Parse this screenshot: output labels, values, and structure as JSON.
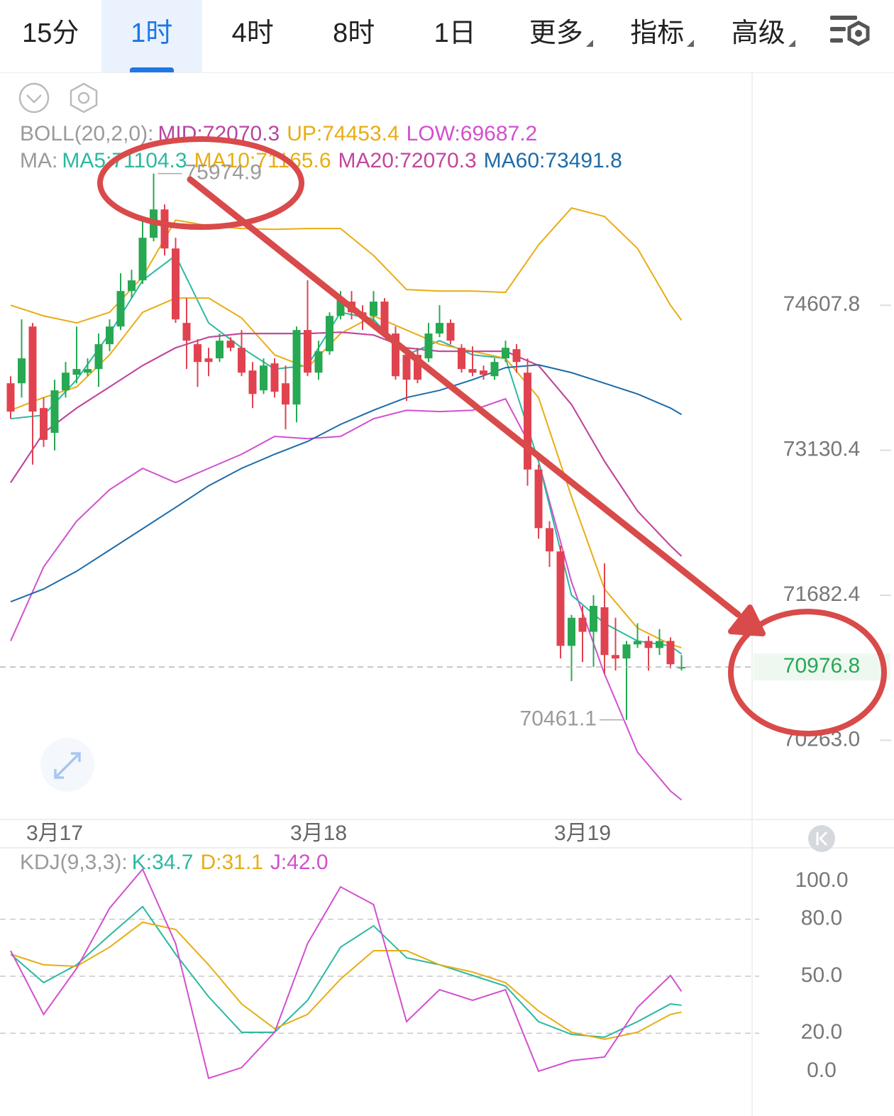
{
  "tabs": [
    {
      "label": "15分"
    },
    {
      "label": "1时",
      "selected": true
    },
    {
      "label": "4时"
    },
    {
      "label": "8时"
    },
    {
      "label": "1日"
    },
    {
      "label": "更多",
      "dropdown": true
    },
    {
      "label": "指标",
      "dropdown": true
    },
    {
      "label": "高级",
      "dropdown": true
    }
  ],
  "chart_data": [
    {
      "type": "candlestick",
      "log_scale": true,
      "up_color": "#27a852",
      "down_color": "#e0434f",
      "categories": [
        null,
        null,
        null,
        null,
        "3月17",
        null,
        null,
        null,
        null,
        null,
        null,
        null,
        null,
        null,
        null,
        null,
        null,
        null,
        null,
        null,
        null,
        null,
        null,
        null,
        null,
        null,
        null,
        null,
        "3月18",
        null,
        null,
        null,
        null,
        null,
        null,
        null,
        null,
        null,
        null,
        null,
        null,
        null,
        null,
        null,
        null,
        null,
        null,
        null,
        null,
        null,
        null,
        null,
        "3月19",
        null,
        null,
        null,
        null,
        null,
        null,
        null,
        null,
        null
      ],
      "open": [
        73809,
        73809,
        74389,
        73557,
        73306,
        73737,
        73896,
        73917,
        73954,
        74208,
        74389,
        74754,
        74864,
        75305,
        75600,
        75194,
        74426,
        74208,
        74063,
        74063,
        74244,
        74171,
        73939,
        73737,
        74012,
        73809,
        73593,
        74353,
        73917,
        74135,
        74498,
        74645,
        74535,
        74498,
        74645,
        74317,
        74099,
        74099,
        74063,
        74317,
        74426,
        74171,
        73954,
        73939,
        73881,
        74063,
        74157,
        73917,
        72936,
        72349,
        72117,
        71184,
        71460,
        71322,
        71564,
        71094,
        71060,
        71198,
        71232,
        71163,
        71232,
        70963
      ],
      "high": [
        73881,
        74462,
        74426,
        73664,
        73845,
        74026,
        74389,
        74063,
        74317,
        74462,
        74937,
        74974,
        75489,
        75974.9,
        75652,
        75305,
        74681,
        74259,
        74171,
        74317,
        74280,
        74353,
        74026,
        74063,
        74063,
        73990,
        74389,
        74864,
        74244,
        74535,
        74754,
        74754,
        74608,
        74754,
        74681,
        74389,
        74171,
        74171,
        74426,
        74608,
        74462,
        74208,
        74186,
        73990,
        74063,
        74244,
        74208,
        74063,
        72986,
        72419,
        72173,
        71488,
        71578,
        71683,
        71998,
        71460,
        71232,
        71405,
        71280,
        71349,
        71267,
        71094
      ],
      "low": [
        73449,
        73664,
        72986,
        73163,
        73128,
        73664,
        73809,
        73881,
        73772,
        74135,
        74353,
        74681,
        74827,
        75269,
        75121,
        74426,
        73954,
        73772,
        73881,
        74026,
        74135,
        73881,
        73557,
        73700,
        73664,
        73342,
        73413,
        73881,
        73845,
        74099,
        74462,
        74462,
        74353,
        74389,
        74280,
        73845,
        73629,
        73809,
        74026,
        74280,
        74208,
        73917,
        73881,
        73845,
        73845,
        74026,
        73917,
        72773,
        72243,
        71963,
        71060,
        70839,
        71025,
        70977,
        70908,
        70942,
        70461.1,
        71163,
        70942,
        71094,
        70963,
        70942
      ],
      "close": [
        73521,
        74063,
        73521,
        73235,
        73737,
        73917,
        73954,
        73954,
        74208,
        74389,
        74754,
        74864,
        75305,
        75600,
        75194,
        74462,
        74244,
        74026,
        74026,
        74244,
        74171,
        73917,
        73700,
        73990,
        73723,
        73593,
        74353,
        73917,
        74135,
        74498,
        74681,
        74535,
        74498,
        74645,
        74317,
        73881,
        73845,
        73845,
        74317,
        74426,
        74244,
        73954,
        73917,
        73896,
        74026,
        74171,
        74026,
        72936,
        72349,
        72117,
        71184,
        71460,
        71322,
        71578,
        71094,
        71060,
        71198,
        71232,
        71163,
        71232,
        71004,
        70976.8
      ],
      "ylim": [
        69500,
        77020
      ],
      "yticks": [
        74607.8,
        73130.4,
        71682.4,
        {
          "value": 70263,
          "label": "70263.0"
        }
      ],
      "line_x": [
        0,
        3,
        6,
        9,
        12,
        15,
        18,
        21,
        24,
        27,
        30,
        33,
        36,
        39,
        42,
        45,
        48,
        51,
        54,
        57,
        60,
        61
      ],
      "boll": {
        "title": "BOLL(20,2,0):",
        "series": [
          {
            "label": "MID:72070.3",
            "color": "#b6479f",
            "values": [
              72805,
              73306,
              73557,
              73772,
              73990,
              74171,
              74280,
              74317,
              74317,
              74317,
              74331,
              74302,
              74171,
              74135,
              74135,
              74135,
              73990,
              73593,
              73019,
              72520,
              72173,
              72070.3
            ]
          },
          {
            "label": "UP:74453.4",
            "color": "#e8ad14",
            "values": [
              74608,
              74498,
              74426,
              74535,
              74901,
              75489,
              75430,
              75401,
              75393,
              75401,
              75401,
              75121,
              74769,
              74754,
              74754,
              74740,
              75231,
              75615,
              75526,
              75194,
              74608,
              74453.4
            ]
          },
          {
            "label": "LOW:69687.2",
            "color": "#d24fcf",
            "values": [
              71232,
              71963,
              72419,
              72734,
              72948,
              72805,
              72948,
              73090,
              73270,
              73248,
              73270,
              73449,
              73535,
              73521,
              73535,
              73651,
              73019,
              71814,
              70908,
              70148,
              69772,
              69687.2
            ]
          }
        ]
      },
      "ma": {
        "title": "MA:",
        "series": [
          {
            "label": "MA5:71104.3",
            "color": "#2bb9a0",
            "values": [
              73449,
              73485,
              73845,
              74317,
              74864,
              75121,
              74426,
              74171,
              73954,
              73990,
              74535,
              74462,
              74099,
              74244,
              74099,
              74063,
              73019,
              71683,
              71405,
              71232,
              71184,
              71104.3
            ]
          },
          {
            "label": "MA10:71165.6",
            "color": "#e8ad14",
            "values": [
              73535,
              73664,
              73772,
              74099,
              74535,
              74681,
              74681,
              74477,
              74099,
              73968,
              74317,
              74498,
              74353,
              74208,
              74135,
              74063,
              73664,
              72663,
              71744,
              71359,
              71199,
              71165.6
            ]
          },
          {
            "label": "MA20:72070.3",
            "color": "#c2479c",
            "values": [
              72805,
              73306,
              73557,
              73772,
              73990,
              74171,
              74280,
              74317,
              74317,
              74317,
              74331,
              74302,
              74171,
              74135,
              74135,
              74135,
              73990,
              73593,
              73019,
              72520,
              72173,
              72070.3
            ]
          },
          {
            "label": "MA60:73491.8",
            "color": "#1e6ba8",
            "values": [
              71618,
              71744,
              71920,
              72131,
              72343,
              72556,
              72773,
              72948,
              73090,
              73219,
              73392,
              73535,
              73664,
              73737,
              73845,
              73968,
              73997,
              73917,
              73809,
              73700,
              73557,
              73491.8
            ]
          }
        ]
      }
    },
    {
      "type": "line",
      "title": "KDJ(9,3,3):",
      "x": [
        0,
        3,
        6,
        9,
        12,
        15,
        18,
        21,
        24,
        27,
        30,
        33,
        36,
        39,
        42,
        45,
        48,
        51,
        54,
        57,
        60,
        61
      ],
      "series": [
        {
          "label": "K:34.7",
          "color": "#2bb9a0",
          "values": [
            61.6,
            46.6,
            56.0,
            71.6,
            86.6,
            61.6,
            39.2,
            20.5,
            20.5,
            37.3,
            65.3,
            76.5,
            59.7,
            56.0,
            50.4,
            44.8,
            26.1,
            19.4,
            17.9,
            26.1,
            35.4,
            34.7
          ]
        },
        {
          "label": "D:31.1",
          "color": "#e8ad14",
          "values": [
            61.6,
            56.0,
            55.2,
            65.3,
            78.4,
            74.6,
            56.0,
            35.4,
            22.4,
            29.9,
            48.5,
            63.4,
            63.4,
            56.0,
            52.2,
            46.6,
            31.7,
            20.5,
            16.8,
            20.5,
            29.9,
            31.1
          ]
        },
        {
          "label": "J:42.0",
          "color": "#d24fcf",
          "values": [
            63.4,
            29.9,
            54.1,
            85.8,
            106.3,
            67.2,
            -3.7,
            1.9,
            20.5,
            67.2,
            97.0,
            87.7,
            26.1,
            42.9,
            37.3,
            42.9,
            0.0,
            5.6,
            7.5,
            33.6,
            50.4,
            42.0
          ]
        }
      ],
      "ylim": [
        -18.7,
        116.8
      ],
      "yticks": [
        {
          "value": 100,
          "label": "100.0"
        },
        {
          "value": 80,
          "label": "80.0"
        },
        {
          "value": 50,
          "label": "50.0"
        },
        {
          "value": 20,
          "label": "20.0"
        },
        {
          "value": 0,
          "label": "0.0"
        }
      ],
      "grid_lines": [
        80,
        50,
        20
      ]
    }
  ]
}
